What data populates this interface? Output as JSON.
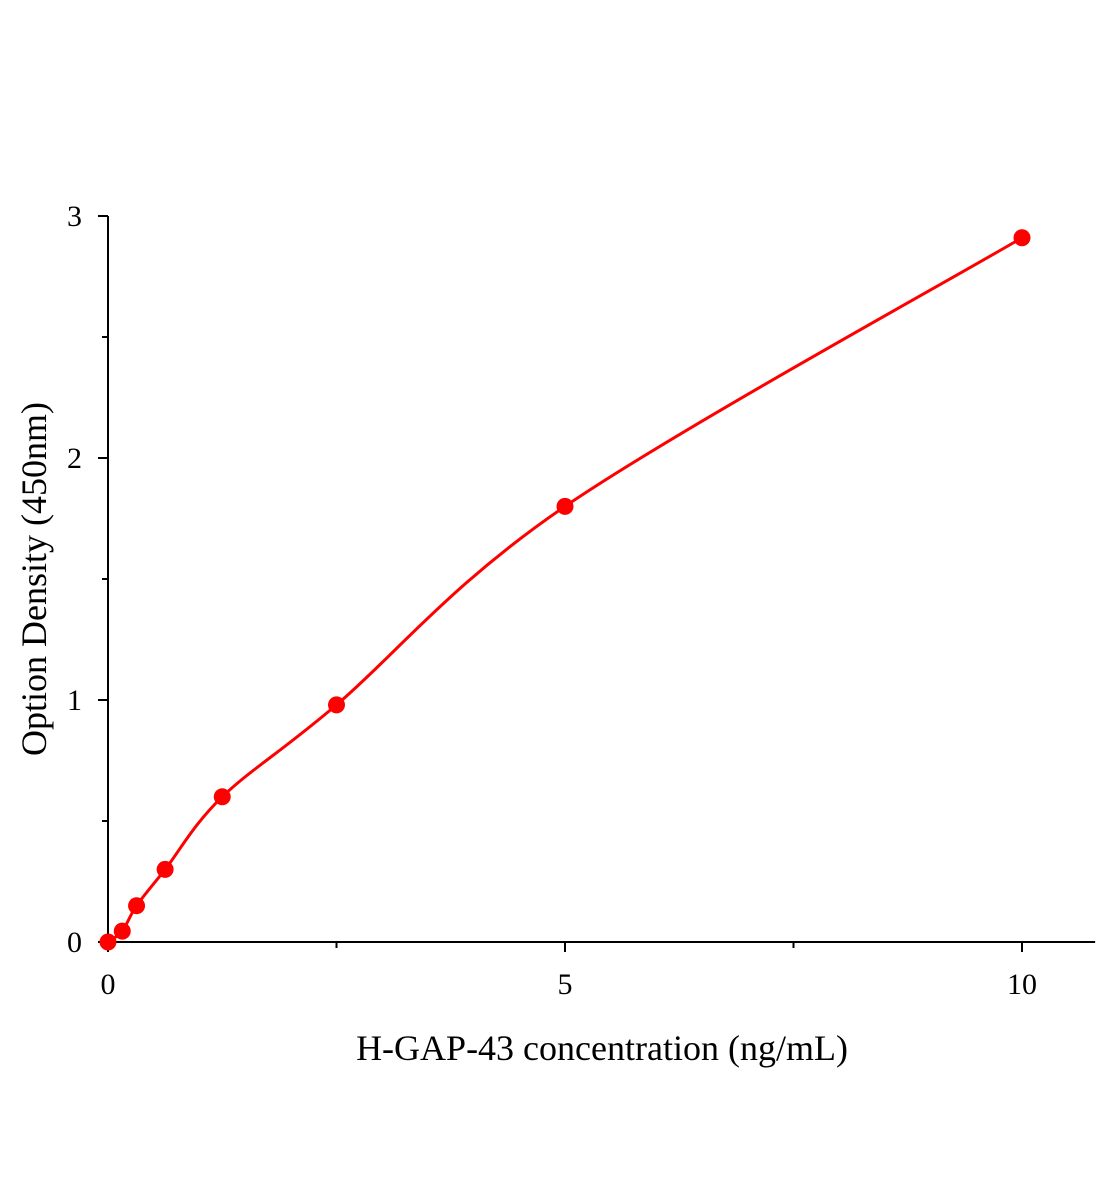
{
  "chart_data": {
    "type": "scatter",
    "title": "",
    "xlabel": "H-GAP-43 concentration (ng/mL)",
    "ylabel": "Option Density (450nm)",
    "xlim": [
      0,
      10.8
    ],
    "ylim": [
      0,
      3
    ],
    "x_ticks": [
      0,
      5,
      10
    ],
    "x_tick_labels": [
      "0",
      "5",
      "10"
    ],
    "x_minor_ticks": [
      2.5,
      7.5
    ],
    "y_ticks": [
      0,
      1,
      2,
      3
    ],
    "y_tick_labels": [
      "0",
      "1",
      "2",
      "3"
    ],
    "y_minor_ticks": [
      0.5,
      1.5,
      2.5
    ],
    "grid": false,
    "series": [
      {
        "x": [
          0,
          0.156,
          0.3125,
          0.625,
          1.25,
          2.5,
          5,
          10
        ],
        "y": [
          0.0,
          0.045,
          0.15,
          0.3,
          0.6,
          0.98,
          1.8,
          2.91
        ],
        "color": "#ff0000",
        "marker": "circle",
        "fit_line": true
      }
    ]
  }
}
